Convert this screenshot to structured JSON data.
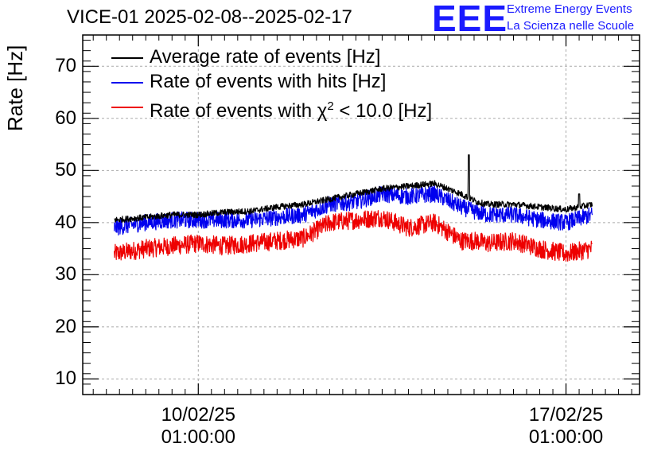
{
  "chart_data": {
    "type": "line",
    "title": "VICE-01 2025-02-08--2025-02-17",
    "ylabel": "Rate [Hz]",
    "xlabel": "",
    "ylim": [
      7,
      76
    ],
    "yticks": [
      10,
      20,
      30,
      40,
      50,
      60,
      70
    ],
    "xlim_days": [
      -2.2,
      8.4
    ],
    "xticks": [
      {
        "day": 0,
        "date": "10/02/25",
        "time": "01:00:00"
      },
      {
        "day": 7,
        "date": "17/02/25",
        "time": "01:00:00"
      }
    ],
    "grid": true,
    "legend_position": "top-left",
    "x_days": [
      -1.6,
      -1.0,
      -0.5,
      0.0,
      0.5,
      1.0,
      1.5,
      2.0,
      2.5,
      3.0,
      3.5,
      4.0,
      4.5,
      5.0,
      5.3,
      5.5,
      6.0,
      6.5,
      7.0,
      7.5
    ],
    "series": [
      {
        "name": "Average rate of events [Hz]",
        "color": "#000000",
        "noise": 0.6,
        "values": [
          40.5,
          41.0,
          41.5,
          41.5,
          42.0,
          42.2,
          43.0,
          43.5,
          44.5,
          45.5,
          46.5,
          47.0,
          47.5,
          45.5,
          44.0,
          43.5,
          43.5,
          43.0,
          42.5,
          43.5
        ]
      },
      {
        "name": "Rate of events with hits [Hz]",
        "color": "#0000ee",
        "noise": 1.6,
        "values": [
          39.0,
          40.0,
          40.5,
          40.5,
          40.5,
          40.5,
          41.0,
          41.5,
          43.5,
          44.0,
          45.5,
          45.0,
          45.5,
          43.0,
          42.0,
          41.5,
          41.5,
          40.5,
          40.0,
          41.5
        ]
      },
      {
        "name": "Rate of events with χ² < 10.0 [Hz]",
        "color": "#ee0000",
        "noise": 1.8,
        "values": [
          34.0,
          35.0,
          35.5,
          36.0,
          35.5,
          36.0,
          36.5,
          37.0,
          40.0,
          40.5,
          41.0,
          39.0,
          40.0,
          36.5,
          36.5,
          36.0,
          36.5,
          35.0,
          34.0,
          35.0
        ]
      }
    ],
    "annotations": [
      {
        "series": 0,
        "x_day": 5.15,
        "y": 53.0,
        "type": "spike"
      },
      {
        "series": 0,
        "x_day": 7.25,
        "y": 45.5,
        "type": "spike"
      }
    ]
  },
  "legend": {
    "avg": {
      "pre": "Average rate of events [Hz]"
    },
    "hits": {
      "pre": "Rate of events with hits [Hz]"
    },
    "chi": {
      "pre": "Rate of events with ",
      "chi": "χ",
      "sup": "2",
      "post": " < 10.0 [Hz]"
    }
  },
  "logo": {
    "mark": "EEE",
    "line1": "Extreme Energy Events",
    "line2": "La Scienza nelle Scuole"
  }
}
